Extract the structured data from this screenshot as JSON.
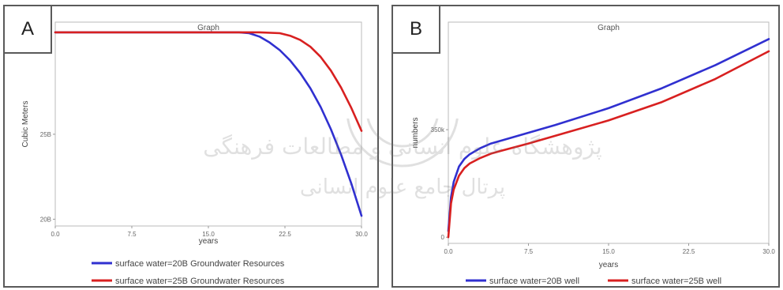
{
  "panels": {
    "a": {
      "letter": "A"
    },
    "b": {
      "letter": "B"
    }
  },
  "watermark": {
    "line1": "پژوهشگاه علوم انسانی و مطالعات فرهنگی",
    "line2": "پرتال جامع علوم انسانی"
  },
  "colors": {
    "series_20B": "#3030d0",
    "series_25B": "#d82020"
  },
  "chart_data": [
    {
      "type": "line",
      "title": "Graph",
      "xlabel": "years",
      "ylabel": "Cubic Meters",
      "xlim": [
        0,
        30
      ],
      "ylim": [
        19.6,
        31.6
      ],
      "x_ticks": [
        0,
        7.5,
        15,
        22.5,
        30
      ],
      "x_tick_labels": [
        "0.0",
        "7.5",
        "15.0",
        "22.5",
        "30.0"
      ],
      "y_ticks": [
        20,
        25
      ],
      "y_tick_labels": [
        "20B",
        "25B"
      ],
      "grid": false,
      "legend_position": "bottom",
      "series": [
        {
          "name": "surface water=20B Groundwater Resources",
          "color": "#3030d0",
          "x": [
            0,
            5,
            10,
            15,
            18,
            19,
            20,
            21,
            22,
            23,
            24,
            25,
            26,
            27,
            28,
            29,
            30
          ],
          "y": [
            31,
            31,
            31,
            31,
            31,
            30.95,
            30.75,
            30.4,
            29.95,
            29.35,
            28.6,
            27.7,
            26.6,
            25.3,
            23.8,
            22.1,
            20.2
          ]
        },
        {
          "name": "surface water=25B Groundwater Resources",
          "color": "#d82020",
          "x": [
            0,
            5,
            10,
            15,
            20,
            22,
            23,
            24,
            25,
            26,
            27,
            28,
            29,
            30
          ],
          "y": [
            31,
            31,
            31,
            31,
            31,
            30.95,
            30.8,
            30.55,
            30.15,
            29.55,
            28.75,
            27.75,
            26.55,
            25.2
          ]
        }
      ]
    },
    {
      "type": "line",
      "title": "Graph",
      "xlabel": "years",
      "ylabel": "numbers",
      "xlim": [
        0,
        30
      ],
      "ylim": [
        -20,
        700
      ],
      "x_ticks": [
        0,
        7.5,
        15,
        22.5,
        30
      ],
      "x_tick_labels": [
        "0.0",
        "7.5",
        "15.0",
        "22.5",
        "30.0"
      ],
      "y_ticks": [
        0,
        350
      ],
      "y_tick_labels": [
        "0",
        "350k"
      ],
      "grid": false,
      "legend_position": "bottom",
      "series": [
        {
          "name": "surface water=20B well",
          "color": "#3030d0",
          "x": [
            0,
            0.25,
            0.5,
            1,
            1.5,
            2,
            3,
            4,
            5,
            7.5,
            10,
            15,
            20,
            25,
            30
          ],
          "y": [
            20,
            130,
            180,
            230,
            255,
            270,
            290,
            305,
            315,
            340,
            365,
            420,
            485,
            560,
            645
          ]
        },
        {
          "name": "surface water=25B well",
          "color": "#d82020",
          "x": [
            0,
            0.25,
            0.5,
            1,
            1.5,
            2,
            3,
            4,
            5,
            7.5,
            10,
            15,
            20,
            25,
            30
          ],
          "y": [
            0,
            110,
            155,
            200,
            225,
            240,
            258,
            272,
            282,
            305,
            330,
            380,
            440,
            515,
            605
          ]
        }
      ]
    }
  ]
}
